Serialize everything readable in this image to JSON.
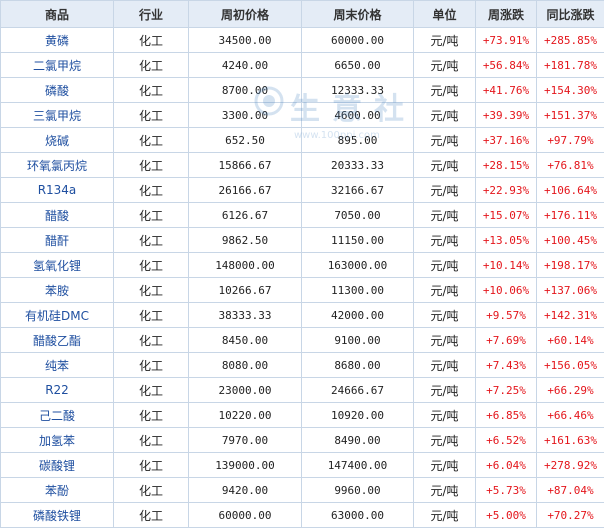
{
  "headers": {
    "name": "商品",
    "industry": "行业",
    "start_price": "周初价格",
    "end_price": "周末价格",
    "unit": "单位",
    "week_change": "周涨跌",
    "yoy_change": "同比涨跌"
  },
  "rows": [
    {
      "name": "黄磷",
      "industry": "化工",
      "start_price": "34500.00",
      "end_price": "60000.00",
      "unit": "元/吨",
      "week_change": "+73.91%",
      "yoy_change": "+285.85%"
    },
    {
      "name": "二氯甲烷",
      "industry": "化工",
      "start_price": "4240.00",
      "end_price": "6650.00",
      "unit": "元/吨",
      "week_change": "+56.84%",
      "yoy_change": "+181.78%"
    },
    {
      "name": "磷酸",
      "industry": "化工",
      "start_price": "8700.00",
      "end_price": "12333.33",
      "unit": "元/吨",
      "week_change": "+41.76%",
      "yoy_change": "+154.30%"
    },
    {
      "name": "三氯甲烷",
      "industry": "化工",
      "start_price": "3300.00",
      "end_price": "4600.00",
      "unit": "元/吨",
      "week_change": "+39.39%",
      "yoy_change": "+151.37%"
    },
    {
      "name": "烧碱",
      "industry": "化工",
      "start_price": "652.50",
      "end_price": "895.00",
      "unit": "元/吨",
      "week_change": "+37.16%",
      "yoy_change": "+97.79%"
    },
    {
      "name": "环氧氯丙烷",
      "industry": "化工",
      "start_price": "15866.67",
      "end_price": "20333.33",
      "unit": "元/吨",
      "week_change": "+28.15%",
      "yoy_change": "+76.81%"
    },
    {
      "name": "R134a",
      "industry": "化工",
      "start_price": "26166.67",
      "end_price": "32166.67",
      "unit": "元/吨",
      "week_change": "+22.93%",
      "yoy_change": "+106.64%"
    },
    {
      "name": "醋酸",
      "industry": "化工",
      "start_price": "6126.67",
      "end_price": "7050.00",
      "unit": "元/吨",
      "week_change": "+15.07%",
      "yoy_change": "+176.11%"
    },
    {
      "name": "醋酐",
      "industry": "化工",
      "start_price": "9862.50",
      "end_price": "11150.00",
      "unit": "元/吨",
      "week_change": "+13.05%",
      "yoy_change": "+100.45%"
    },
    {
      "name": "氢氧化锂",
      "industry": "化工",
      "start_price": "148000.00",
      "end_price": "163000.00",
      "unit": "元/吨",
      "week_change": "+10.14%",
      "yoy_change": "+198.17%"
    },
    {
      "name": "苯胺",
      "industry": "化工",
      "start_price": "10266.67",
      "end_price": "11300.00",
      "unit": "元/吨",
      "week_change": "+10.06%",
      "yoy_change": "+137.06%"
    },
    {
      "name": "有机硅DMC",
      "industry": "化工",
      "start_price": "38333.33",
      "end_price": "42000.00",
      "unit": "元/吨",
      "week_change": "+9.57%",
      "yoy_change": "+142.31%"
    },
    {
      "name": "醋酸乙酯",
      "industry": "化工",
      "start_price": "8450.00",
      "end_price": "9100.00",
      "unit": "元/吨",
      "week_change": "+7.69%",
      "yoy_change": "+60.14%"
    },
    {
      "name": "纯苯",
      "industry": "化工",
      "start_price": "8080.00",
      "end_price": "8680.00",
      "unit": "元/吨",
      "week_change": "+7.43%",
      "yoy_change": "+156.05%"
    },
    {
      "name": "R22",
      "industry": "化工",
      "start_price": "23000.00",
      "end_price": "24666.67",
      "unit": "元/吨",
      "week_change": "+7.25%",
      "yoy_change": "+66.29%"
    },
    {
      "name": "己二酸",
      "industry": "化工",
      "start_price": "10220.00",
      "end_price": "10920.00",
      "unit": "元/吨",
      "week_change": "+6.85%",
      "yoy_change": "+66.46%"
    },
    {
      "name": "加氢苯",
      "industry": "化工",
      "start_price": "7970.00",
      "end_price": "8490.00",
      "unit": "元/吨",
      "week_change": "+6.52%",
      "yoy_change": "+161.63%"
    },
    {
      "name": "碳酸锂",
      "industry": "化工",
      "start_price": "139000.00",
      "end_price": "147400.00",
      "unit": "元/吨",
      "week_change": "+6.04%",
      "yoy_change": "+278.92%"
    },
    {
      "name": "苯酚",
      "industry": "化工",
      "start_price": "9420.00",
      "end_price": "9960.00",
      "unit": "元/吨",
      "week_change": "+5.73%",
      "yoy_change": "+87.04%"
    },
    {
      "name": "磷酸铁锂",
      "industry": "化工",
      "start_price": "60000.00",
      "end_price": "63000.00",
      "unit": "元/吨",
      "week_change": "+5.00%",
      "yoy_change": "+70.27%"
    }
  ],
  "watermark": {
    "text": "生意社",
    "url": "www.100ppi.com"
  },
  "colors": {
    "header_bg": "#e4ecf6",
    "border": "#c8d6e6",
    "name_link": "#1f4fa0",
    "up_red": "#e4151b"
  }
}
